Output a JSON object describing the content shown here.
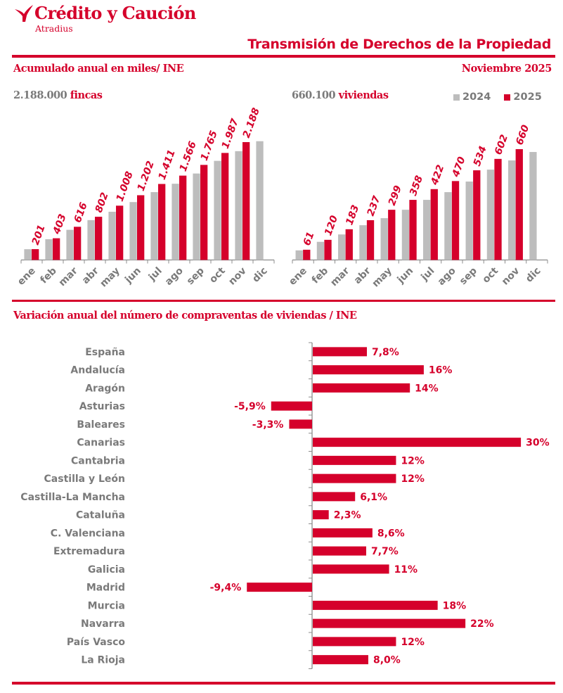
{
  "brand": {
    "name": "Crédito y Caución",
    "subtitle": "Atradius",
    "logo_icon": "swallow-bird-icon"
  },
  "header": {
    "title": "Transmisión de Derechos de la Propiedad",
    "section_title": "Acumulado anual en miles/ INE",
    "period": "Noviembre  2025"
  },
  "colors": {
    "accent": "#d5002b",
    "series_2024": "#bdbdbd",
    "series_2025": "#d5002b",
    "text_gray": "#7a7a7a"
  },
  "kpis": {
    "left": {
      "value": "2.188.000",
      "unit": "fincas"
    },
    "right": {
      "value": "660.100",
      "unit": "viviendas"
    }
  },
  "legend": [
    {
      "label": "2024",
      "color": "#bdbdbd"
    },
    {
      "label": "2025",
      "color": "#d5002b"
    }
  ],
  "section2": {
    "title": "Variación anual del número de compraventas de viviendas / INE"
  },
  "chart_data": [
    {
      "type": "bar",
      "title": "2.188.000 fincas",
      "xlabel": "",
      "ylabel": "Acumulado anual en miles",
      "categories": [
        "ene",
        "feb",
        "mar",
        "abr",
        "may",
        "jun",
        "jul",
        "ago",
        "sep",
        "oct",
        "nov",
        "dic"
      ],
      "series": [
        {
          "name": "2024",
          "values": [
            200,
            385,
            560,
            740,
            895,
            1075,
            1260,
            1415,
            1605,
            1840,
            2020,
            2205
          ]
        },
        {
          "name": "2025",
          "values": [
            201,
            403,
            616,
            802,
            1008,
            1202,
            1411,
            1566,
            1765,
            1987,
            2188,
            null
          ]
        }
      ],
      "data_labels": [
        "201",
        "403",
        "616",
        "802",
        "1.008",
        "1.202",
        "1.411",
        "1.566",
        "1.765",
        "1.987",
        "2.188",
        ""
      ],
      "data_labels_series": "2025",
      "ylim": [
        0,
        2300
      ],
      "grid": false,
      "legend": "top-right"
    },
    {
      "type": "bar",
      "title": "660.100 viviendas",
      "xlabel": "",
      "ylabel": "Acumulado anual en miles",
      "categories": [
        "ene",
        "feb",
        "mar",
        "abr",
        "may",
        "jun",
        "jul",
        "ago",
        "sep",
        "oct",
        "nov",
        "dic"
      ],
      "series": [
        {
          "name": "2024",
          "values": [
            57,
            108,
            152,
            207,
            249,
            299,
            358,
            404,
            467,
            538,
            593,
            643
          ]
        },
        {
          "name": "2025",
          "values": [
            61,
            120,
            183,
            237,
            299,
            358,
            422,
            470,
            534,
            602,
            660,
            null
          ]
        }
      ],
      "data_labels": [
        "61",
        "120",
        "183",
        "237",
        "299",
        "358",
        "422",
        "470",
        "534",
        "602",
        "660",
        ""
      ],
      "data_labels_series": "2025",
      "ylim": [
        0,
        690
      ],
      "grid": false,
      "legend": "top-right"
    },
    {
      "type": "bar",
      "orientation": "horizontal",
      "title": "Variación anual del número de compraventas de viviendas / INE",
      "xlabel": "",
      "ylabel": "",
      "categories": [
        "España",
        "Andalucía",
        "Aragón",
        "Asturias",
        "Baleares",
        "Canarias",
        "Cantabria",
        "Castilla y León",
        "Castilla-La Mancha",
        "Cataluña",
        "C. Valenciana",
        "Extremadura",
        "Galicia",
        "Madrid",
        "Murcia",
        "Navarra",
        "País Vasco",
        "La Rioja"
      ],
      "values": [
        7.8,
        16,
        14,
        -5.9,
        -3.3,
        30,
        12,
        12,
        6.1,
        2.3,
        8.6,
        7.7,
        11,
        -9.4,
        18,
        22,
        12,
        8.0
      ],
      "data_labels": [
        "7,8%",
        "16%",
        "14%",
        "-5,9%",
        "-3,3%",
        "30%",
        "12%",
        "12%",
        "6,1%",
        "2,3%",
        "8,6%",
        "7,7%",
        "11%",
        "-9,4%",
        "18%",
        "22%",
        "12%",
        "8,0%"
      ],
      "unit": "%",
      "xlim": [
        -10,
        32
      ],
      "grid": false
    }
  ]
}
